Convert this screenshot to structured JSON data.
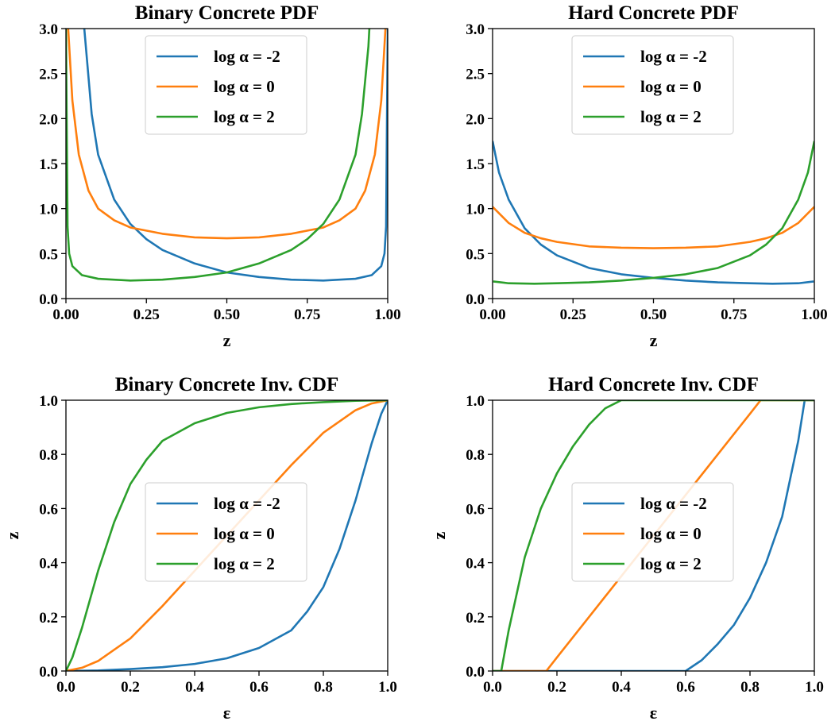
{
  "chart_data": [
    {
      "type": "line",
      "title": "Binary Concrete PDF",
      "xlabel": "z",
      "ylabel": "",
      "xlim": [
        0,
        1
      ],
      "ylim": [
        0,
        3
      ],
      "xticks": [
        "0.00",
        "0.25",
        "0.50",
        "0.75",
        "1.00"
      ],
      "yticks": [
        "0.0",
        "0.5",
        "1.0",
        "1.5",
        "2.0",
        "2.5",
        "3.0"
      ],
      "legend": "top-center",
      "series": [
        {
          "name": "log α = -2",
          "color": "#1f77b4",
          "x": [
            0.057,
            0.08,
            0.1,
            0.15,
            0.2,
            0.25,
            0.3,
            0.4,
            0.5,
            0.6,
            0.7,
            0.8,
            0.9,
            0.95,
            0.98,
            0.99,
            0.995,
            1.0
          ],
          "y": [
            3.0,
            2.05,
            1.6,
            1.1,
            0.83,
            0.66,
            0.54,
            0.39,
            0.29,
            0.24,
            0.21,
            0.2,
            0.22,
            0.26,
            0.36,
            0.5,
            0.8,
            3.0
          ]
        },
        {
          "name": "log α = 0",
          "color": "#ff7f0e",
          "x": [
            0.007,
            0.02,
            0.04,
            0.07,
            0.1,
            0.15,
            0.2,
            0.3,
            0.4,
            0.5,
            0.6,
            0.7,
            0.8,
            0.85,
            0.9,
            0.93,
            0.96,
            0.98,
            0.993
          ],
          "y": [
            3.0,
            2.2,
            1.6,
            1.2,
            1.0,
            0.87,
            0.79,
            0.72,
            0.68,
            0.67,
            0.68,
            0.72,
            0.79,
            0.87,
            1.0,
            1.2,
            1.6,
            2.2,
            3.0
          ]
        },
        {
          "name": "log α = 2",
          "color": "#2ca02c",
          "x": [
            0.0,
            0.005,
            0.01,
            0.02,
            0.05,
            0.1,
            0.2,
            0.3,
            0.4,
            0.5,
            0.6,
            0.7,
            0.75,
            0.8,
            0.85,
            0.9,
            0.92,
            0.94,
            0.943
          ],
          "y": [
            3.0,
            0.8,
            0.5,
            0.36,
            0.26,
            0.22,
            0.2,
            0.21,
            0.24,
            0.29,
            0.39,
            0.54,
            0.66,
            0.83,
            1.1,
            1.6,
            2.05,
            2.8,
            3.0
          ]
        }
      ]
    },
    {
      "type": "line",
      "title": "Hard Concrete PDF",
      "xlabel": "z",
      "ylabel": "",
      "xlim": [
        0,
        1
      ],
      "ylim": [
        0,
        3
      ],
      "xticks": [
        "0.00",
        "0.25",
        "0.50",
        "0.75",
        "1.00"
      ],
      "yticks": [
        "0.0",
        "0.5",
        "1.0",
        "1.5",
        "2.0",
        "2.5",
        "3.0"
      ],
      "legend": "top-center",
      "series": [
        {
          "name": "log α = -2",
          "color": "#1f77b4",
          "x": [
            0.0,
            0.02,
            0.05,
            0.1,
            0.15,
            0.2,
            0.3,
            0.4,
            0.5,
            0.6,
            0.7,
            0.8,
            0.87,
            0.95,
            0.998
          ],
          "y": [
            1.75,
            1.4,
            1.1,
            0.78,
            0.6,
            0.48,
            0.34,
            0.27,
            0.23,
            0.2,
            0.18,
            0.17,
            0.165,
            0.17,
            0.19
          ]
        },
        {
          "name": "log α = 0",
          "color": "#ff7f0e",
          "x": [
            0.0,
            0.05,
            0.1,
            0.15,
            0.2,
            0.3,
            0.4,
            0.5,
            0.6,
            0.7,
            0.8,
            0.85,
            0.9,
            0.95,
            1.0
          ],
          "y": [
            1.02,
            0.84,
            0.73,
            0.67,
            0.63,
            0.58,
            0.565,
            0.56,
            0.565,
            0.58,
            0.63,
            0.67,
            0.73,
            0.84,
            1.02
          ]
        },
        {
          "name": "log α = 2",
          "color": "#2ca02c",
          "x": [
            0.002,
            0.05,
            0.13,
            0.2,
            0.3,
            0.4,
            0.5,
            0.6,
            0.7,
            0.8,
            0.85,
            0.9,
            0.95,
            0.98,
            1.0
          ],
          "y": [
            0.19,
            0.17,
            0.165,
            0.17,
            0.18,
            0.2,
            0.23,
            0.27,
            0.34,
            0.48,
            0.6,
            0.78,
            1.1,
            1.4,
            1.75
          ]
        }
      ]
    },
    {
      "type": "line",
      "title": "Binary Concrete Inv. CDF",
      "xlabel": "ε",
      "ylabel": "z",
      "xlim": [
        0,
        1
      ],
      "ylim": [
        0,
        1
      ],
      "xticks": [
        "0.0",
        "0.2",
        "0.4",
        "0.6",
        "0.8",
        "1.0"
      ],
      "yticks": [
        "0.0",
        "0.2",
        "0.4",
        "0.6",
        "0.8",
        "1.0"
      ],
      "legend": "center-right",
      "series": [
        {
          "name": "log α = -2",
          "color": "#1f77b4",
          "x": [
            0.0,
            0.1,
            0.2,
            0.3,
            0.4,
            0.5,
            0.6,
            0.7,
            0.75,
            0.8,
            0.85,
            0.9,
            0.95,
            0.98,
            1.0
          ],
          "y": [
            0.0,
            0.002,
            0.007,
            0.014,
            0.026,
            0.047,
            0.085,
            0.15,
            0.22,
            0.31,
            0.45,
            0.63,
            0.84,
            0.95,
            1.0
          ]
        },
        {
          "name": "log α = 0",
          "color": "#ff7f0e",
          "x": [
            0.0,
            0.05,
            0.1,
            0.2,
            0.3,
            0.4,
            0.5,
            0.6,
            0.7,
            0.8,
            0.9,
            0.95,
            1.0
          ],
          "y": [
            0.0,
            0.012,
            0.037,
            0.12,
            0.24,
            0.37,
            0.5,
            0.63,
            0.76,
            0.88,
            0.963,
            0.988,
            1.0
          ]
        },
        {
          "name": "log α = 2",
          "color": "#2ca02c",
          "x": [
            0.0,
            0.02,
            0.05,
            0.1,
            0.15,
            0.2,
            0.25,
            0.3,
            0.4,
            0.5,
            0.6,
            0.7,
            0.8,
            0.9,
            1.0
          ],
          "y": [
            0.0,
            0.05,
            0.16,
            0.37,
            0.55,
            0.69,
            0.78,
            0.85,
            0.915,
            0.953,
            0.974,
            0.986,
            0.993,
            0.998,
            1.0
          ]
        }
      ]
    },
    {
      "type": "line",
      "title": "Hard Concrete Inv. CDF",
      "xlabel": "ε",
      "ylabel": "z",
      "xlim": [
        0,
        1
      ],
      "ylim": [
        0,
        1
      ],
      "xticks": [
        "0.0",
        "0.2",
        "0.4",
        "0.6",
        "0.8",
        "1.0"
      ],
      "yticks": [
        "0.0",
        "0.2",
        "0.4",
        "0.6",
        "0.8",
        "1.0"
      ],
      "legend": "center-right",
      "series": [
        {
          "name": "log α = -2",
          "color": "#1f77b4",
          "x": [
            0.0,
            0.6,
            0.65,
            0.7,
            0.75,
            0.8,
            0.85,
            0.9,
            0.95,
            0.97,
            1.0
          ],
          "y": [
            0.0,
            0.0,
            0.04,
            0.1,
            0.17,
            0.27,
            0.4,
            0.57,
            0.85,
            1.0,
            1.0
          ]
        },
        {
          "name": "log α = 0",
          "color": "#ff7f0e",
          "x": [
            0.0,
            0.167,
            0.2,
            0.3,
            0.4,
            0.5,
            0.6,
            0.7,
            0.8,
            0.833,
            1.0
          ],
          "y": [
            0.0,
            0.0,
            0.05,
            0.2,
            0.35,
            0.5,
            0.65,
            0.8,
            0.95,
            1.0,
            1.0
          ]
        },
        {
          "name": "log α = 2",
          "color": "#2ca02c",
          "x": [
            0.0,
            0.027,
            0.05,
            0.1,
            0.15,
            0.2,
            0.25,
            0.3,
            0.35,
            0.4,
            1.0
          ],
          "y": [
            0.0,
            0.0,
            0.15,
            0.42,
            0.6,
            0.73,
            0.83,
            0.91,
            0.97,
            1.0,
            1.0
          ]
        }
      ]
    }
  ]
}
